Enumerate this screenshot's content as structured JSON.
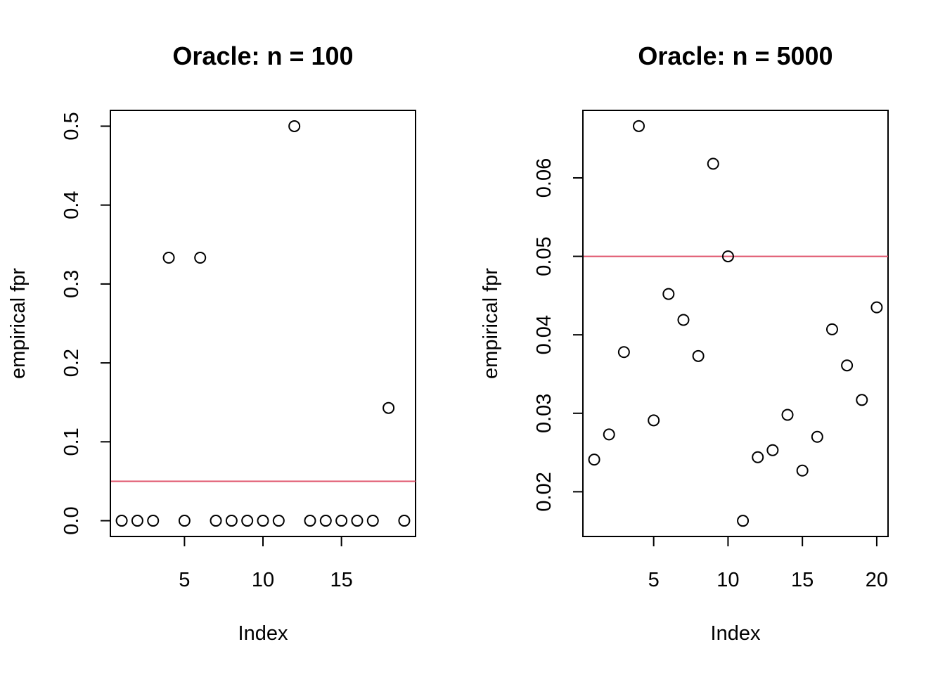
{
  "chart_data": [
    {
      "type": "scatter",
      "title": "Oracle: n = 100",
      "xlabel": "Index",
      "ylabel": "empirical fpr",
      "xlim": [
        0.28,
        19.72
      ],
      "ylim": [
        -0.02,
        0.52
      ],
      "x_ticks": [
        5,
        10,
        15
      ],
      "x_tick_labels": [
        "5",
        "10",
        "15"
      ],
      "y_ticks": [
        0.0,
        0.1,
        0.2,
        0.3,
        0.4,
        0.5
      ],
      "y_tick_labels": [
        "0.0",
        "0.1",
        "0.2",
        "0.3",
        "0.4",
        "0.5"
      ],
      "x": [
        1,
        2,
        3,
        4,
        5,
        6,
        7,
        8,
        9,
        10,
        11,
        12,
        13,
        14,
        15,
        16,
        17,
        18,
        19
      ],
      "y": [
        0,
        0,
        0,
        0.3333,
        0,
        0.3333,
        0,
        0,
        0,
        0,
        0,
        0.5,
        0,
        0,
        0,
        0,
        0,
        0.1429,
        0
      ],
      "hline": 0.05,
      "grid": false,
      "colors": {
        "points": "#000000",
        "hline": "#DF536B"
      }
    },
    {
      "type": "scatter",
      "title": "Oracle: n = 5000",
      "xlabel": "Index",
      "ylabel": "empirical fpr",
      "xlim": [
        0.24,
        20.76
      ],
      "ylim": [
        0.0143,
        0.0686
      ],
      "x_ticks": [
        5,
        10,
        15,
        20
      ],
      "x_tick_labels": [
        "5",
        "10",
        "15",
        "20"
      ],
      "y_ticks": [
        0.02,
        0.03,
        0.04,
        0.05,
        0.06
      ],
      "y_tick_labels": [
        "0.02",
        "0.03",
        "0.04",
        "0.05",
        "0.06"
      ],
      "x": [
        1,
        2,
        3,
        4,
        5,
        6,
        7,
        8,
        9,
        10,
        11,
        12,
        13,
        14,
        15,
        16,
        17,
        18,
        19,
        20
      ],
      "y": [
        0.0241,
        0.0273,
        0.0378,
        0.0666,
        0.0291,
        0.0452,
        0.0419,
        0.0373,
        0.0618,
        0.05,
        0.0163,
        0.0244,
        0.0253,
        0.0298,
        0.0227,
        0.027,
        0.0407,
        0.0361,
        0.0317,
        0.0435
      ],
      "hline": 0.05,
      "grid": false,
      "colors": {
        "points": "#000000",
        "hline": "#DF536B"
      }
    }
  ]
}
